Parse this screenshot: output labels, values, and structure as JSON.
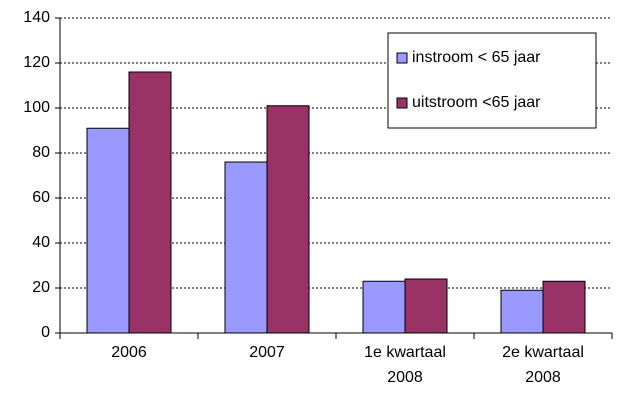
{
  "chart_data": {
    "type": "bar",
    "categories": [
      "2006",
      "2007",
      "1e kwartaal 2008",
      "2e kwartaal 2008"
    ],
    "series": [
      {
        "name": "instroom < 65 jaar",
        "color": "#9999ff",
        "values": [
          91,
          76,
          23,
          19
        ]
      },
      {
        "name": "uitstroom <65 jaar",
        "color": "#993366",
        "values": [
          116,
          101,
          24,
          23
        ]
      }
    ],
    "ylim": [
      0,
      140
    ],
    "yticks": [
      0,
      20,
      40,
      60,
      80,
      100,
      120,
      140
    ],
    "grid": true,
    "legend": "top-right"
  }
}
